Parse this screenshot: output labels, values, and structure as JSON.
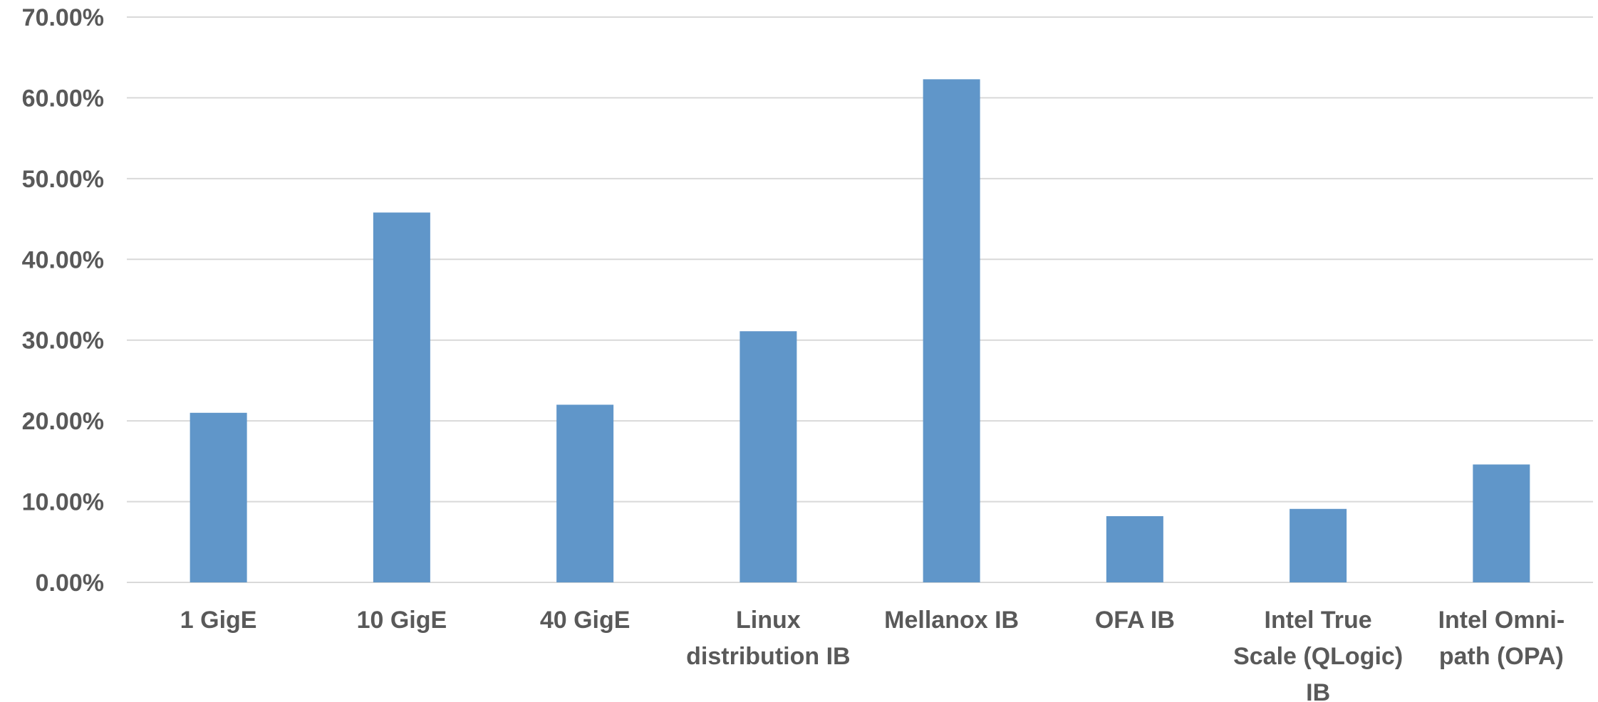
{
  "chart_data": {
    "type": "bar",
    "title": "",
    "xlabel": "",
    "ylabel": "",
    "categories": [
      [
        "1 GigE"
      ],
      [
        "10 GigE"
      ],
      [
        "40 GigE"
      ],
      [
        "Linux",
        "distribution IB"
      ],
      [
        "Mellanox IB"
      ],
      [
        "OFA IB"
      ],
      [
        "Intel True",
        "Scale (QLogic)",
        "IB"
      ],
      [
        "Intel Omni-",
        "path (OPA)"
      ]
    ],
    "values": [
      21.0,
      45.8,
      22.0,
      31.1,
      62.3,
      8.2,
      9.1,
      14.6
    ],
    "ylim": [
      0,
      70
    ],
    "yticks": [
      0,
      10,
      20,
      30,
      40,
      50,
      60,
      70
    ],
    "ytick_labels": [
      "0.00%",
      "10.00%",
      "20.00%",
      "30.00%",
      "40.00%",
      "50.00%",
      "60.00%",
      "70.00%"
    ],
    "grid": true,
    "legend": "none",
    "bar_color": "#6096c9",
    "grid_color": "#d9d9d9",
    "label_color": "#595959"
  }
}
